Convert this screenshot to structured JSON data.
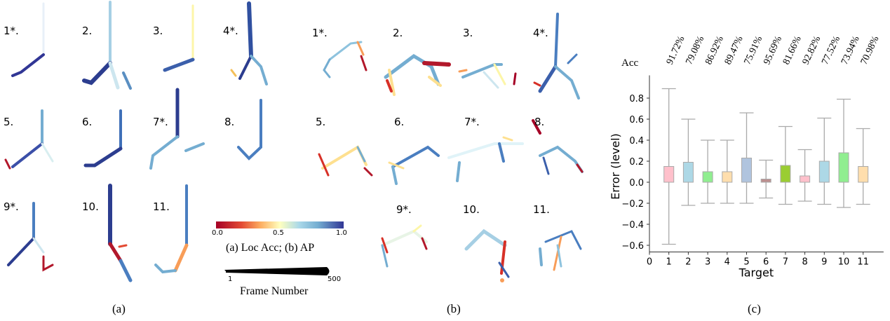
{
  "panel_a": {
    "labels": [
      "1*.",
      "2.",
      "3.",
      "4*.",
      "5.",
      "6.",
      "7*.",
      "8.",
      "9*.",
      "10.",
      "11."
    ],
    "caption": "(a)"
  },
  "panel_b": {
    "labels": [
      "1*.",
      "2.",
      "3.",
      "4*.",
      "5.",
      "6.",
      "7*.",
      "8.",
      "9*.",
      "10.",
      "11."
    ],
    "caption": "(b)"
  },
  "panel_c": {
    "caption": "(c)"
  },
  "legend": {
    "colorbar_ticks": [
      "0.0",
      "0.5",
      "1.0"
    ],
    "colorbar_title": "(a) Loc Acc; (b) AP",
    "width_ticks": [
      "1",
      "500"
    ],
    "width_title": "Frame Number"
  },
  "chart_data": {
    "type": "box",
    "xlabel": "Target",
    "ylabel": "Error (level)",
    "ylim": [
      -0.65,
      0.95
    ],
    "xlim": [
      0,
      11.8
    ],
    "yticks": [
      "0.8",
      "0.6",
      "0.4",
      "0.2",
      "0.0",
      "-0.2",
      "-0.4",
      "-0.6"
    ],
    "ytick_values": [
      0.8,
      0.6,
      0.4,
      0.2,
      0.0,
      -0.2,
      -0.4,
      -0.6
    ],
    "xticks": [
      "0",
      "1",
      "2",
      "3",
      "4",
      "5",
      "6",
      "7",
      "8",
      "9",
      "10",
      "11"
    ],
    "acc_label": "Acc",
    "acc": [
      "91.72%",
      "79.08%",
      "86.92%",
      "89.47%",
      "75.91%",
      "95.69%",
      "81.66%",
      "92.82%",
      "77.52%",
      "73.94%",
      "70.98%"
    ],
    "boxes": [
      {
        "target": 1,
        "q1": 0,
        "q3": 0.15,
        "whisker_low": -0.59,
        "whisker_high": 0.89,
        "color": "#ffc0cb"
      },
      {
        "target": 2,
        "q1": 0,
        "q3": 0.19,
        "whisker_low": -0.22,
        "whisker_high": 0.6,
        "color": "#add8e6"
      },
      {
        "target": 3,
        "q1": 0,
        "q3": 0.1,
        "whisker_low": -0.2,
        "whisker_high": 0.4,
        "color": "#90ee90"
      },
      {
        "target": 4,
        "q1": 0,
        "q3": 0.1,
        "whisker_low": -0.2,
        "whisker_high": 0.4,
        "color": "#ffdead"
      },
      {
        "target": 5,
        "q1": 0,
        "q3": 0.23,
        "whisker_low": -0.2,
        "whisker_high": 0.66,
        "color": "#b0c4de"
      },
      {
        "target": 6,
        "q1": 0,
        "q3": 0.03,
        "whisker_low": -0.15,
        "whisker_high": 0.21,
        "color": "#bc8f8f"
      },
      {
        "target": 7,
        "q1": 0,
        "q3": 0.16,
        "whisker_low": -0.21,
        "whisker_high": 0.53,
        "color": "#9acd32"
      },
      {
        "target": 8,
        "q1": 0,
        "q3": 0.06,
        "whisker_low": -0.18,
        "whisker_high": 0.31,
        "color": "#ffc0cb"
      },
      {
        "target": 9,
        "q1": 0,
        "q3": 0.2,
        "whisker_low": -0.21,
        "whisker_high": 0.61,
        "color": "#add8e6"
      },
      {
        "target": 10,
        "q1": 0,
        "q3": 0.28,
        "whisker_low": -0.24,
        "whisker_high": 0.79,
        "color": "#90ee90"
      },
      {
        "target": 11,
        "q1": 0,
        "q3": 0.15,
        "whisker_low": -0.21,
        "whisker_high": 0.51,
        "color": "#ffdead"
      }
    ]
  }
}
